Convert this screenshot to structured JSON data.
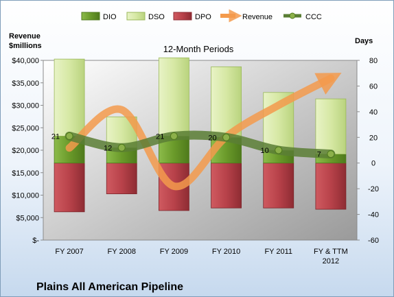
{
  "chart_data": {
    "type": "bar",
    "title": "Plains All American Pipeline",
    "subtitle": "12-Month Periods",
    "left_axis_label_line1": "Revenue",
    "left_axis_label_line2": "$millions",
    "right_axis_label": "Days",
    "categories": [
      "FY 2007",
      "FY 2008",
      "FY 2009",
      "FY 2010",
      "FY 2011",
      "FY & TTM 2012"
    ],
    "left_ylim": [
      0,
      40000
    ],
    "left_ticks": [
      "$-",
      "$5,000",
      "$10,000",
      "$15,000",
      "$20,000",
      "$25,000",
      "$30,000",
      "$35,000",
      "$40,000"
    ],
    "right_ylim": [
      -60,
      80
    ],
    "right_ticks": [
      "-60",
      "-40",
      "-20",
      "0",
      "20",
      "40",
      "60",
      "80"
    ],
    "grid": false,
    "legend_position": "top",
    "series": [
      {
        "name": "DIO",
        "type": "stacked-bar",
        "axis": "right",
        "color": "#6a9a2a",
        "values": [
          21,
          12,
          21,
          20,
          10,
          7
        ]
      },
      {
        "name": "DSO",
        "type": "stacked-bar",
        "axis": "right",
        "color": "#d6e8a4",
        "values": [
          60,
          24,
          61,
          55,
          45,
          43
        ]
      },
      {
        "name": "DPO",
        "type": "stacked-bar-negative",
        "axis": "right",
        "color": "#b8424a",
        "values": [
          -38,
          -24,
          -37,
          -35,
          -35,
          -36
        ]
      },
      {
        "name": "Revenue",
        "type": "line",
        "axis": "left",
        "color": "#f39a4c",
        "values": [
          20500,
          29000,
          12000,
          23000,
          30000,
          36000
        ]
      },
      {
        "name": "CCC",
        "type": "line",
        "axis": "right",
        "color": "#5a7e35",
        "values": [
          21,
          12,
          21,
          20,
          10,
          7
        ]
      }
    ],
    "data_labels": [
      "21",
      "12",
      "21",
      "20",
      "10",
      "7"
    ]
  }
}
